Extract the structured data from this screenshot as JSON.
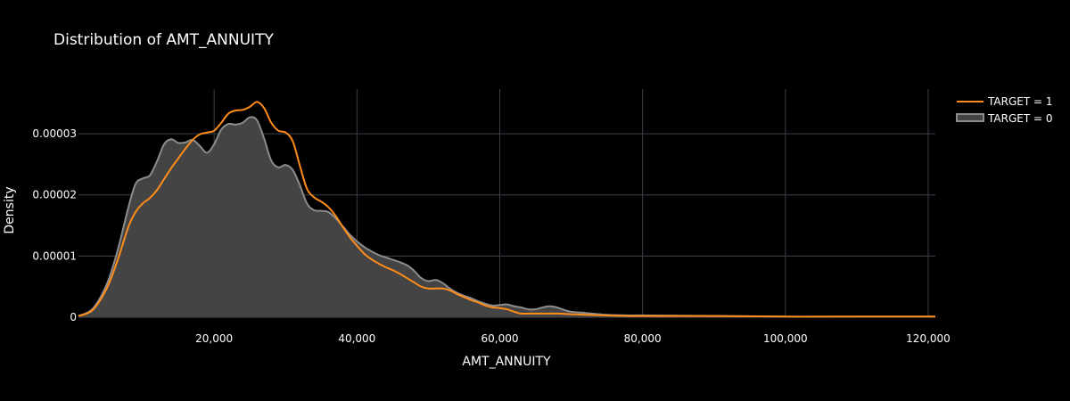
{
  "chart_data": {
    "type": "area",
    "title": "Distribution of AMT_ANNUITY",
    "xlabel": "AMT_ANNUITY",
    "ylabel": "Density",
    "xlim": [
      1000,
      121000
    ],
    "ylim": [
      0,
      3.73e-05
    ],
    "x_ticks": [
      20000,
      40000,
      60000,
      80000,
      100000,
      120000
    ],
    "x_tick_labels": [
      "20,000",
      "40,000",
      "60,000",
      "80,000",
      "100,000",
      "120,000"
    ],
    "y_ticks": [
      0,
      1e-05,
      2e-05,
      3e-05
    ],
    "y_tick_labels": [
      "0",
      "0.00001",
      "0.00002",
      "0.00003"
    ],
    "grid": true,
    "legend_position": "top-right",
    "series": [
      {
        "name": "TARGET = 1",
        "color": "#ff8c1a",
        "fill": false,
        "x": [
          1000,
          3000,
          5000,
          6500,
          8000,
          9000,
          10000,
          11000,
          12000,
          13000,
          14000,
          15000,
          16000,
          17000,
          18000,
          19000,
          20000,
          21000,
          22000,
          23000,
          24000,
          25000,
          26000,
          27000,
          28000,
          29000,
          30000,
          31000,
          32000,
          33000,
          34000,
          35000,
          36000,
          37000,
          38000,
          39000,
          40000,
          41000,
          42000,
          43000,
          44000,
          45000,
          46000,
          47000,
          48000,
          49000,
          50000,
          51000,
          52000,
          53000,
          54000,
          55000,
          56000,
          57000,
          58000,
          59000,
          60000,
          61000,
          62000,
          63000,
          64000,
          65000,
          66000,
          68000,
          70000,
          72000,
          75000,
          78000,
          80000,
          90000,
          100000,
          110000,
          121000
        ],
        "y": [
          2e-07,
          1.2e-06,
          4.8e-06,
          9.4e-06,
          1.48e-05,
          1.72e-05,
          1.86e-05,
          1.95e-05,
          2.08e-05,
          2.26e-05,
          2.44e-05,
          2.6e-05,
          2.76e-05,
          2.9e-05,
          2.99e-05,
          3.02e-05,
          3.05e-05,
          3.18e-05,
          3.33e-05,
          3.38e-05,
          3.39e-05,
          3.44e-05,
          3.52e-05,
          3.42e-05,
          3.18e-05,
          3.05e-05,
          3.02e-05,
          2.88e-05,
          2.48e-05,
          2.1e-05,
          1.96e-05,
          1.89e-05,
          1.8e-05,
          1.66e-05,
          1.48e-05,
          1.31e-05,
          1.17e-05,
          1.04e-05,
          9.5e-06,
          8.8e-06,
          8.2e-06,
          7.7e-06,
          7.1e-06,
          6.4e-06,
          5.7e-06,
          5e-06,
          4.7e-06,
          4.7e-06,
          4.7e-06,
          4.4e-06,
          3.8e-06,
          3.3e-06,
          2.8e-06,
          2.4e-06,
          1.9e-06,
          1.6e-06,
          1.5e-06,
          1.3e-06,
          9e-07,
          6e-07,
          6e-07,
          6e-07,
          6e-07,
          6e-07,
          5e-07,
          4e-07,
          3e-07,
          2e-07,
          2e-07,
          2e-07,
          1e-07,
          1e-07,
          1e-07
        ]
      },
      {
        "name": "TARGET = 0",
        "color": "#8c8c8c",
        "fill": true,
        "fill_color": "#444444",
        "x": [
          1000,
          3000,
          5000,
          6500,
          8000,
          9000,
          10000,
          11000,
          12000,
          13000,
          14000,
          15000,
          16000,
          17000,
          18000,
          19000,
          20000,
          21000,
          22000,
          23000,
          24000,
          25000,
          26000,
          27000,
          28000,
          29000,
          30000,
          31000,
          32000,
          33000,
          34000,
          35000,
          36000,
          37000,
          38000,
          39000,
          40000,
          41000,
          42000,
          43000,
          44000,
          45000,
          46000,
          47000,
          48000,
          49000,
          50000,
          51000,
          52000,
          53000,
          54000,
          55000,
          56000,
          57000,
          58000,
          59000,
          60000,
          61000,
          62000,
          63000,
          64000,
          65000,
          66000,
          67000,
          68000,
          69000,
          70000,
          72000,
          75000,
          78000,
          80000,
          90000,
          100000,
          110000,
          121000
        ],
        "y": [
          2e-07,
          1.4e-06,
          5.5e-06,
          1.1e-05,
          1.8e-05,
          2.18e-05,
          2.27e-05,
          2.32e-05,
          2.55e-05,
          2.83e-05,
          2.91e-05,
          2.85e-05,
          2.86e-05,
          2.9e-05,
          2.8e-05,
          2.69e-05,
          2.83e-05,
          3.07e-05,
          3.16e-05,
          3.15e-05,
          3.18e-05,
          3.27e-05,
          3.22e-05,
          2.92e-05,
          2.56e-05,
          2.45e-05,
          2.49e-05,
          2.41e-05,
          2.16e-05,
          1.86e-05,
          1.75e-05,
          1.74e-05,
          1.72e-05,
          1.62e-05,
          1.49e-05,
          1.35e-05,
          1.24e-05,
          1.15e-05,
          1.08e-05,
          1.02e-05,
          9.8e-06,
          9.4e-06,
          9e-06,
          8.5e-06,
          7.6e-06,
          6.4e-06,
          5.9e-06,
          6.1e-06,
          5.6e-06,
          4.7e-06,
          4e-06,
          3.5e-06,
          3.1e-06,
          2.6e-06,
          2.2e-06,
          1.9e-06,
          2e-06,
          2.1e-06,
          1.8e-06,
          1.6e-06,
          1.3e-06,
          1.3e-06,
          1.6e-06,
          1.8e-06,
          1.6e-06,
          1.2e-06,
          9e-07,
          7e-07,
          4e-07,
          3e-07,
          3e-07,
          2e-07,
          1e-07,
          1e-07,
          1e-07
        ]
      }
    ]
  }
}
